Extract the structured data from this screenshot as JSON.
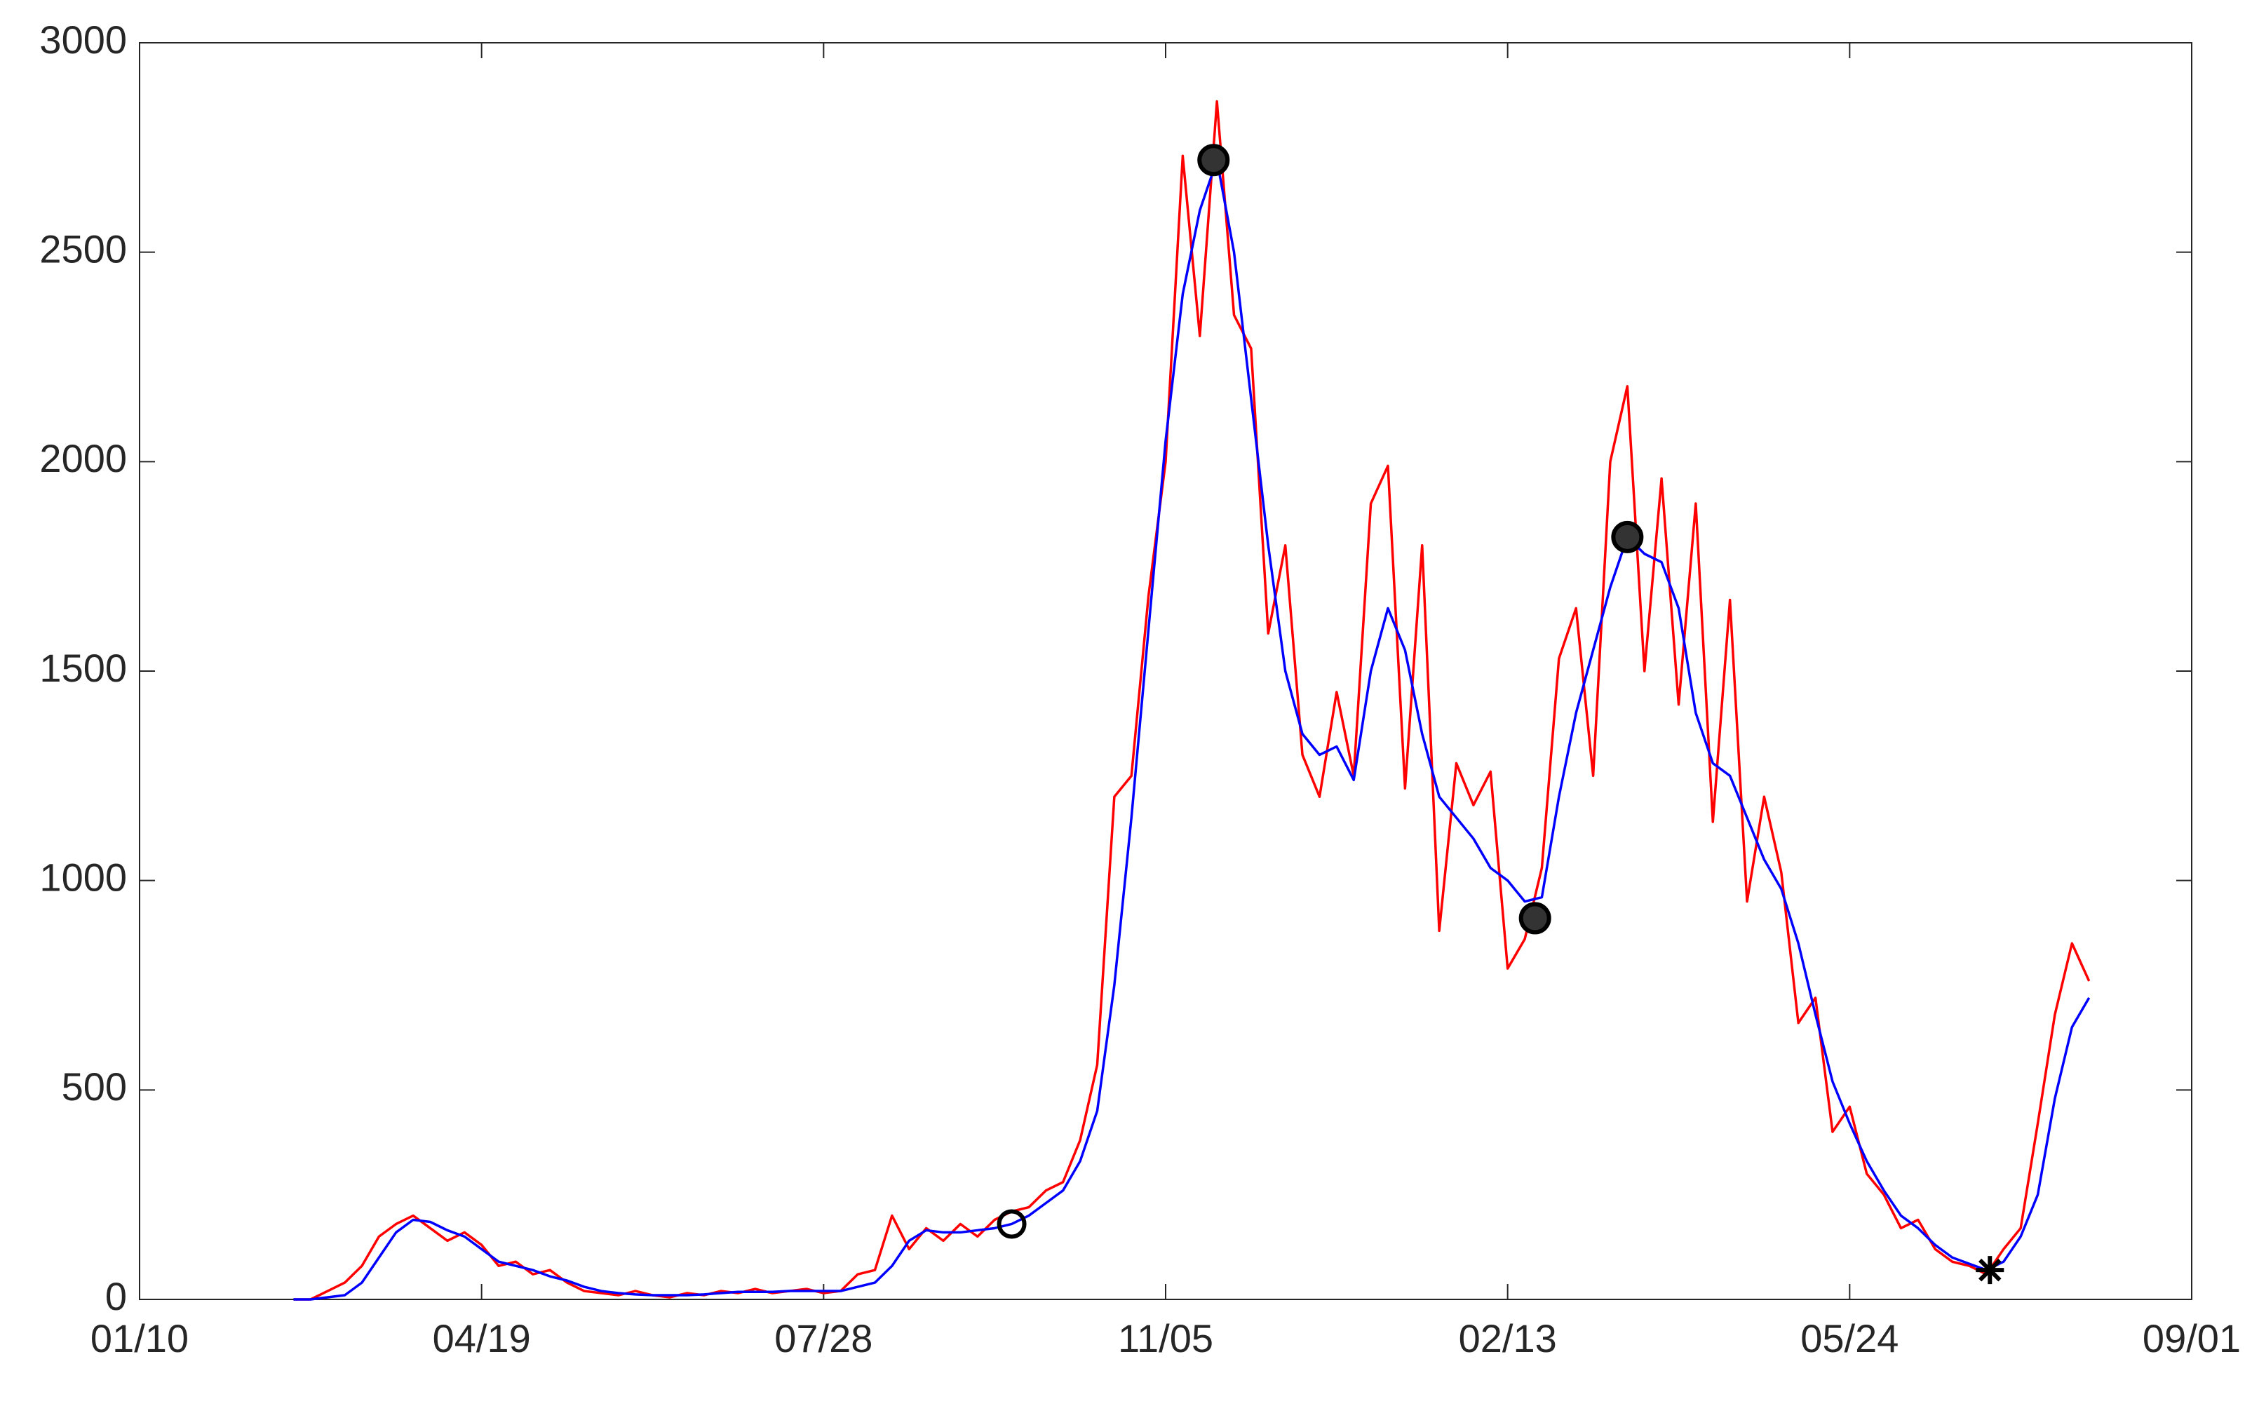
{
  "chart_data": {
    "type": "line",
    "x": [
      45,
      50,
      55,
      60,
      65,
      70,
      75,
      80,
      85,
      90,
      95,
      100,
      105,
      110,
      115,
      120,
      125,
      130,
      135,
      140,
      145,
      150,
      155,
      160,
      165,
      170,
      175,
      180,
      185,
      190,
      195,
      200,
      205,
      210,
      215,
      220,
      225,
      230,
      235,
      240,
      245,
      250,
      255,
      260,
      265,
      270,
      275,
      280,
      285,
      290,
      295,
      300,
      305,
      310,
      315,
      320,
      325,
      330,
      335,
      340,
      345,
      350,
      355,
      360,
      365,
      370,
      375,
      380,
      385,
      390,
      395,
      400,
      405,
      410,
      415,
      420,
      425,
      430,
      435,
      440,
      445,
      450,
      455,
      460,
      465,
      470,
      475,
      480,
      485,
      490,
      495,
      500,
      505,
      510,
      515,
      520,
      525,
      530,
      535,
      540,
      545,
      550,
      555,
      560,
      565,
      570
    ],
    "series": [
      {
        "color": "#ff0000",
        "values": [
          0,
          0,
          20,
          40,
          80,
          150,
          180,
          200,
          170,
          140,
          160,
          130,
          80,
          90,
          60,
          70,
          40,
          20,
          15,
          10,
          20,
          10,
          5,
          15,
          10,
          20,
          15,
          25,
          15,
          20,
          25,
          15,
          20,
          60,
          70,
          200,
          120,
          170,
          140,
          180,
          150,
          190,
          210,
          220,
          260,
          280,
          380,
          560,
          1200,
          1250,
          1680,
          2000,
          2730,
          2300,
          2860,
          2350,
          2270,
          1590,
          1800,
          1300,
          1200,
          1450,
          1250,
          1900,
          1990,
          1220,
          1800,
          880,
          1280,
          1180,
          1260,
          790,
          860,
          1030,
          1530,
          1650,
          1250,
          2000,
          2180,
          1500,
          1960,
          1420,
          1900,
          1140,
          1670,
          950,
          1200,
          1020,
          660,
          720,
          400,
          460,
          300,
          250,
          170,
          190,
          120,
          90,
          80,
          60,
          120,
          170,
          420,
          680,
          850,
          760
        ]
      },
      {
        "color": "#0000ff",
        "values": [
          0,
          0,
          5,
          10,
          40,
          100,
          160,
          190,
          185,
          165,
          150,
          120,
          90,
          80,
          70,
          55,
          45,
          30,
          20,
          15,
          12,
          10,
          10,
          10,
          12,
          15,
          18,
          18,
          18,
          20,
          20,
          20,
          20,
          30,
          40,
          80,
          140,
          165,
          160,
          160,
          165,
          170,
          180,
          200,
          230,
          260,
          330,
          450,
          750,
          1150,
          1600,
          2050,
          2400,
          2600,
          2720,
          2500,
          2150,
          1800,
          1500,
          1350,
          1300,
          1320,
          1240,
          1500,
          1650,
          1550,
          1350,
          1200,
          1150,
          1100,
          1030,
          1000,
          950,
          960,
          1200,
          1400,
          1550,
          1700,
          1820,
          1780,
          1760,
          1650,
          1400,
          1280,
          1250,
          1150,
          1050,
          980,
          850,
          680,
          520,
          420,
          330,
          260,
          200,
          170,
          130,
          100,
          85,
          70,
          90,
          150,
          250,
          480,
          650,
          720
        ]
      }
    ],
    "markers": [
      {
        "marker": "circle",
        "x": [
          255
        ],
        "values": [
          180
        ]
      },
      {
        "marker": "filled-circle",
        "x": [
          314,
          408,
          435
        ],
        "values": [
          2720,
          910,
          1820
        ]
      },
      {
        "marker": "asterisk",
        "x": [
          541
        ],
        "values": [
          70
        ]
      }
    ],
    "xlim": [
      0,
      600
    ],
    "xticks": [
      {
        "value": 0,
        "label": "01/10"
      },
      {
        "value": 100,
        "label": "04/19"
      },
      {
        "value": 200,
        "label": "07/28"
      },
      {
        "value": 300,
        "label": "11/05"
      },
      {
        "value": 400,
        "label": "02/13"
      },
      {
        "value": 500,
        "label": "05/24"
      },
      {
        "value": 600,
        "label": "09/01"
      }
    ],
    "ylim": [
      0,
      3000
    ],
    "yticks": [
      0,
      500,
      1000,
      1500,
      2000,
      2500,
      3000
    ]
  }
}
